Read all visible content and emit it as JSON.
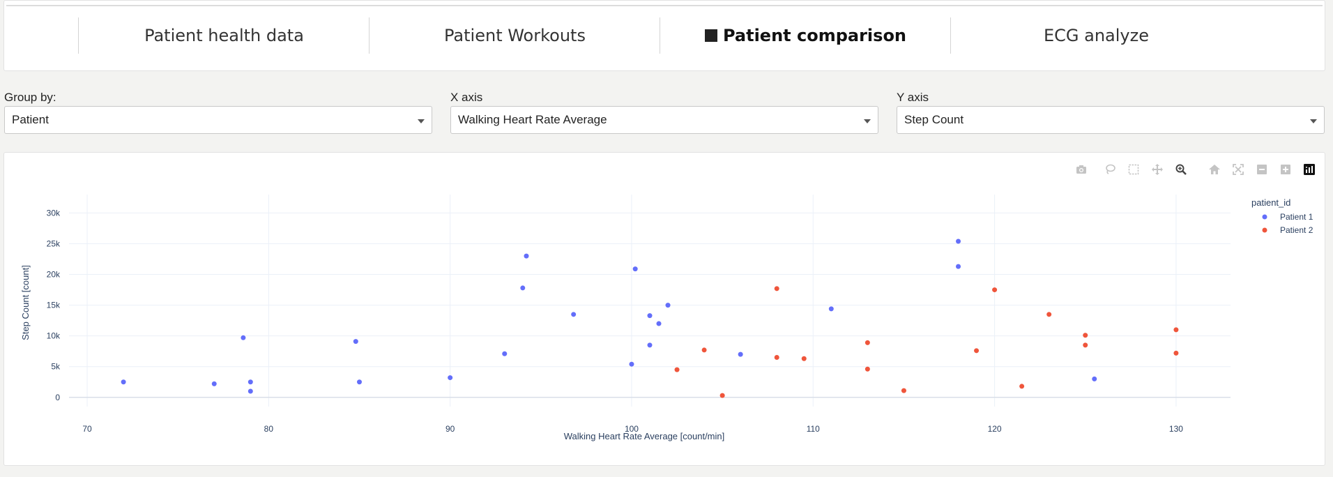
{
  "tabs": [
    {
      "label": "Patient health data",
      "active": false
    },
    {
      "label": "Patient Workouts",
      "active": false
    },
    {
      "label": "Patient comparison",
      "active": true
    },
    {
      "label": "ECG analyze",
      "active": false
    }
  ],
  "controls": {
    "group_by": {
      "label": "Group by:",
      "value": "Patient"
    },
    "x_axis": {
      "label": "X axis",
      "value": "Walking Heart Rate Average"
    },
    "y_axis": {
      "label": "Y axis",
      "value": "Step Count"
    }
  },
  "modebar": {
    "icons": [
      "camera-icon",
      "lasso-icon",
      "box-select-icon",
      "pan-icon",
      "zoom-icon",
      "home-icon",
      "autoscale-icon",
      "zoom-out-icon",
      "zoom-in-icon",
      "plotly-logo-icon"
    ],
    "active_color": "#444444",
    "inactive_color": "#c4c4c4"
  },
  "chart_data": {
    "type": "scatter",
    "xlabel": "Walking Heart Rate Average [count/min]",
    "ylabel": "Step Count [count]",
    "xlim": [
      69,
      133
    ],
    "ylim": [
      -1500,
      33000
    ],
    "x_ticks": [
      70,
      80,
      90,
      100,
      110,
      120,
      130
    ],
    "x_tick_labels": [
      "70",
      "80",
      "90",
      "100",
      "110",
      "120",
      "130"
    ],
    "y_ticks": [
      0,
      5000,
      10000,
      15000,
      20000,
      25000,
      30000
    ],
    "y_tick_labels": [
      "0",
      "5k",
      "10k",
      "15k",
      "20k",
      "25k",
      "30k"
    ],
    "grid": true,
    "legend_title": "patient_id",
    "legend_position": "top-right",
    "series": [
      {
        "name": "Patient 1",
        "color": "#636efa",
        "points": [
          [
            72,
            2500
          ],
          [
            77,
            2200
          ],
          [
            78.6,
            9700
          ],
          [
            79,
            2500
          ],
          [
            79,
            1000
          ],
          [
            84.8,
            9100
          ],
          [
            85,
            2500
          ],
          [
            90,
            3200
          ],
          [
            93,
            7100
          ],
          [
            94,
            17800
          ],
          [
            94.2,
            23000
          ],
          [
            96.8,
            13500
          ],
          [
            100,
            5400
          ],
          [
            100.2,
            20900
          ],
          [
            101,
            13300
          ],
          [
            101,
            8500
          ],
          [
            101.5,
            12000
          ],
          [
            102,
            15000
          ],
          [
            106,
            7000
          ],
          [
            111,
            14400
          ],
          [
            118,
            25400
          ],
          [
            118,
            21300
          ],
          [
            125.5,
            3000
          ]
        ]
      },
      {
        "name": "Patient 2",
        "color": "#ef553b",
        "points": [
          [
            102.5,
            4500
          ],
          [
            104,
            7700
          ],
          [
            105,
            300
          ],
          [
            108,
            17700
          ],
          [
            108,
            6500
          ],
          [
            109.5,
            6300
          ],
          [
            113,
            8900
          ],
          [
            113,
            4600
          ],
          [
            115,
            1100
          ],
          [
            119,
            7600
          ],
          [
            120,
            17500
          ],
          [
            121.5,
            1800
          ],
          [
            123,
            13500
          ],
          [
            125,
            10100
          ],
          [
            125,
            8500
          ],
          [
            130,
            11000
          ],
          [
            130,
            7200
          ]
        ]
      }
    ]
  }
}
